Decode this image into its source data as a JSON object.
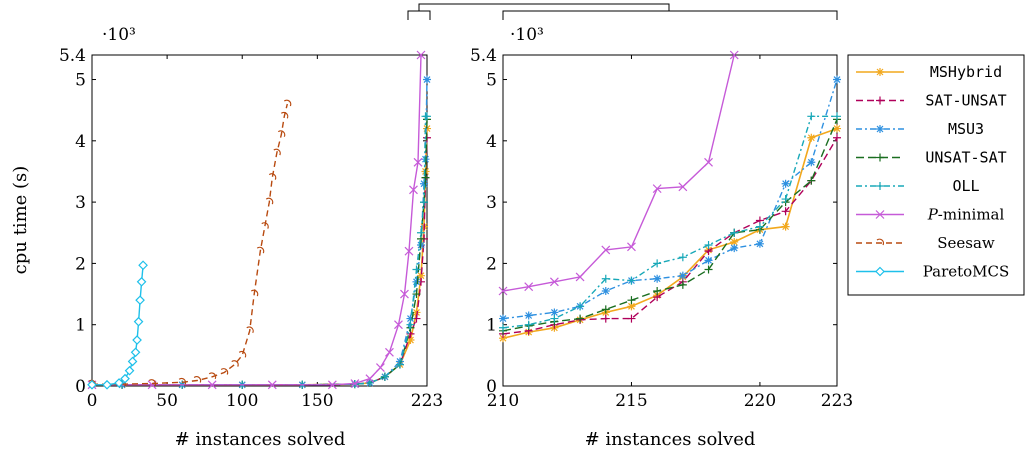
{
  "chart_data": [
    {
      "type": "line",
      "xlabel": "# instances solved",
      "ylabel": "cpu time (s)",
      "y_multiplier": "·10³",
      "xlim": [
        0,
        223
      ],
      "ylim": [
        0,
        5.4
      ],
      "xticks": [
        "0",
        "50",
        "100",
        "150",
        "223"
      ],
      "yticks": [
        "0",
        "1",
        "2",
        "3",
        "4",
        "5",
        "5.4"
      ],
      "series": [
        {
          "name": "MSHybrid",
          "x": [
            0,
            20,
            60,
            100,
            140,
            175,
            185,
            195,
            205,
            212,
            216,
            219,
            221,
            222,
            223
          ],
          "y": [
            0.02,
            0.02,
            0.02,
            0.02,
            0.02,
            0.03,
            0.05,
            0.15,
            0.35,
            0.75,
            1.2,
            1.8,
            2.6,
            3.5,
            4.2
          ]
        },
        {
          "name": "SAT-UNSAT",
          "x": [
            0,
            20,
            60,
            100,
            140,
            175,
            185,
            195,
            205,
            212,
            216,
            219,
            221,
            222,
            223
          ],
          "y": [
            0.02,
            0.02,
            0.02,
            0.02,
            0.02,
            0.03,
            0.05,
            0.15,
            0.35,
            0.85,
            1.1,
            1.7,
            2.4,
            3.4,
            4.05
          ]
        },
        {
          "name": "MSU3",
          "x": [
            0,
            20,
            60,
            100,
            140,
            175,
            185,
            195,
            205,
            212,
            216,
            219,
            221,
            222,
            223
          ],
          "y": [
            0.02,
            0.02,
            0.02,
            0.02,
            0.02,
            0.03,
            0.05,
            0.15,
            0.4,
            1.1,
            1.7,
            2.3,
            3.3,
            3.7,
            5.0
          ]
        },
        {
          "name": "UNSAT-SAT",
          "x": [
            0,
            20,
            60,
            100,
            140,
            175,
            185,
            195,
            205,
            212,
            216,
            219,
            221,
            222,
            223
          ],
          "y": [
            0.02,
            0.02,
            0.02,
            0.02,
            0.02,
            0.03,
            0.05,
            0.15,
            0.35,
            0.95,
            1.5,
            2.4,
            3.0,
            3.4,
            4.35
          ]
        },
        {
          "name": "OLL",
          "x": [
            0,
            20,
            60,
            100,
            140,
            175,
            185,
            195,
            205,
            212,
            216,
            219,
            221,
            222,
            223
          ],
          "y": [
            0.02,
            0.02,
            0.02,
            0.02,
            0.02,
            0.03,
            0.05,
            0.15,
            0.35,
            1.0,
            1.9,
            2.5,
            3.0,
            4.4,
            4.4
          ]
        },
        {
          "name": "P-minimal",
          "x": [
            0,
            40,
            80,
            120,
            160,
            175,
            185,
            192,
            198,
            204,
            208,
            211,
            214,
            217,
            219
          ],
          "y": [
            0.02,
            0.02,
            0.02,
            0.02,
            0.02,
            0.04,
            0.12,
            0.3,
            0.55,
            1.0,
            1.5,
            2.2,
            3.2,
            3.65,
            5.4
          ]
        },
        {
          "name": "Seesaw",
          "x": [
            0,
            20,
            40,
            60,
            70,
            80,
            88,
            95,
            100,
            105,
            108,
            112,
            115,
            118,
            120,
            123,
            126,
            128,
            130
          ],
          "y": [
            0.03,
            0.03,
            0.04,
            0.06,
            0.09,
            0.15,
            0.22,
            0.35,
            0.5,
            0.9,
            1.5,
            2.2,
            2.6,
            3.0,
            3.4,
            3.8,
            4.1,
            4.4,
            4.6
          ]
        },
        {
          "name": "ParetoMCS",
          "x": [
            0,
            10,
            18,
            22,
            25,
            27,
            29,
            30,
            31,
            32,
            33,
            34
          ],
          "y": [
            0.02,
            0.02,
            0.05,
            0.12,
            0.25,
            0.4,
            0.55,
            0.75,
            1.05,
            1.4,
            1.7,
            1.97
          ]
        }
      ]
    },
    {
      "type": "line",
      "xlabel": "# instances solved",
      "y_multiplier": "·10³",
      "xlim": [
        210,
        223
      ],
      "ylim": [
        0,
        5.4
      ],
      "xticks": [
        "210",
        "215",
        "220",
        "223"
      ],
      "yticks": [
        "0",
        "1",
        "2",
        "3",
        "4",
        "5",
        "5.4"
      ],
      "series": [
        {
          "name": "MSHybrid",
          "x": [
            210,
            211,
            212,
            213,
            214,
            215,
            216,
            217,
            218,
            219,
            220,
            221,
            222,
            223
          ],
          "y": [
            0.78,
            0.88,
            0.95,
            1.08,
            1.2,
            1.3,
            1.48,
            1.78,
            2.22,
            2.35,
            2.55,
            2.6,
            4.05,
            4.2
          ]
        },
        {
          "name": "SAT-UNSAT",
          "x": [
            210,
            211,
            212,
            213,
            214,
            215,
            216,
            217,
            218,
            219,
            220,
            221,
            222,
            223
          ],
          "y": [
            0.85,
            0.9,
            1.0,
            1.08,
            1.1,
            1.1,
            1.45,
            1.7,
            2.2,
            2.5,
            2.7,
            2.85,
            3.35,
            4.05
          ]
        },
        {
          "name": "MSU3",
          "x": [
            210,
            211,
            212,
            213,
            214,
            215,
            216,
            217,
            218,
            219,
            220,
            221,
            222,
            223
          ],
          "y": [
            1.1,
            1.15,
            1.2,
            1.3,
            1.55,
            1.72,
            1.75,
            1.8,
            2.05,
            2.25,
            2.32,
            3.3,
            3.65,
            5.0
          ]
        },
        {
          "name": "UNSAT-SAT",
          "x": [
            210,
            211,
            212,
            213,
            214,
            215,
            216,
            217,
            218,
            219,
            220,
            221,
            222,
            223
          ],
          "y": [
            0.9,
            0.98,
            1.05,
            1.1,
            1.25,
            1.4,
            1.55,
            1.65,
            1.9,
            2.5,
            2.55,
            3.0,
            3.35,
            4.35
          ]
        },
        {
          "name": "OLL",
          "x": [
            210,
            211,
            212,
            213,
            214,
            215,
            216,
            217,
            218,
            219,
            220,
            221,
            222,
            223
          ],
          "y": [
            0.95,
            1.0,
            1.1,
            1.3,
            1.75,
            1.72,
            2.0,
            2.1,
            2.3,
            2.5,
            2.6,
            3.05,
            4.4,
            4.4
          ]
        },
        {
          "name": "P-minimal",
          "x": [
            210,
            211,
            212,
            213,
            214,
            215,
            216,
            217,
            218,
            219
          ],
          "y": [
            1.55,
            1.62,
            1.7,
            1.78,
            2.22,
            2.27,
            3.22,
            3.25,
            3.65,
            5.4
          ]
        }
      ]
    }
  ],
  "legend": {
    "placement": "right",
    "entries": [
      {
        "label": "MSHybrid",
        "mono": true,
        "color": "#f2a81d"
      },
      {
        "label": "SAT-UNSAT",
        "mono": true,
        "color": "#b0005a"
      },
      {
        "label": "MSU3",
        "mono": true,
        "color": "#2e90e0"
      },
      {
        "label": "UNSAT-SAT",
        "mono": true,
        "color": "#1a6e20"
      },
      {
        "label": "OLL",
        "mono": true,
        "color": "#18a8b8"
      },
      {
        "label": "P-minimal",
        "mono": false,
        "color": "#c65ad8"
      },
      {
        "label": "Seesaw",
        "mono": false,
        "color": "#b84a10"
      },
      {
        "label": "ParetoMCS",
        "mono": false,
        "color": "#1ec0ea"
      }
    ]
  }
}
